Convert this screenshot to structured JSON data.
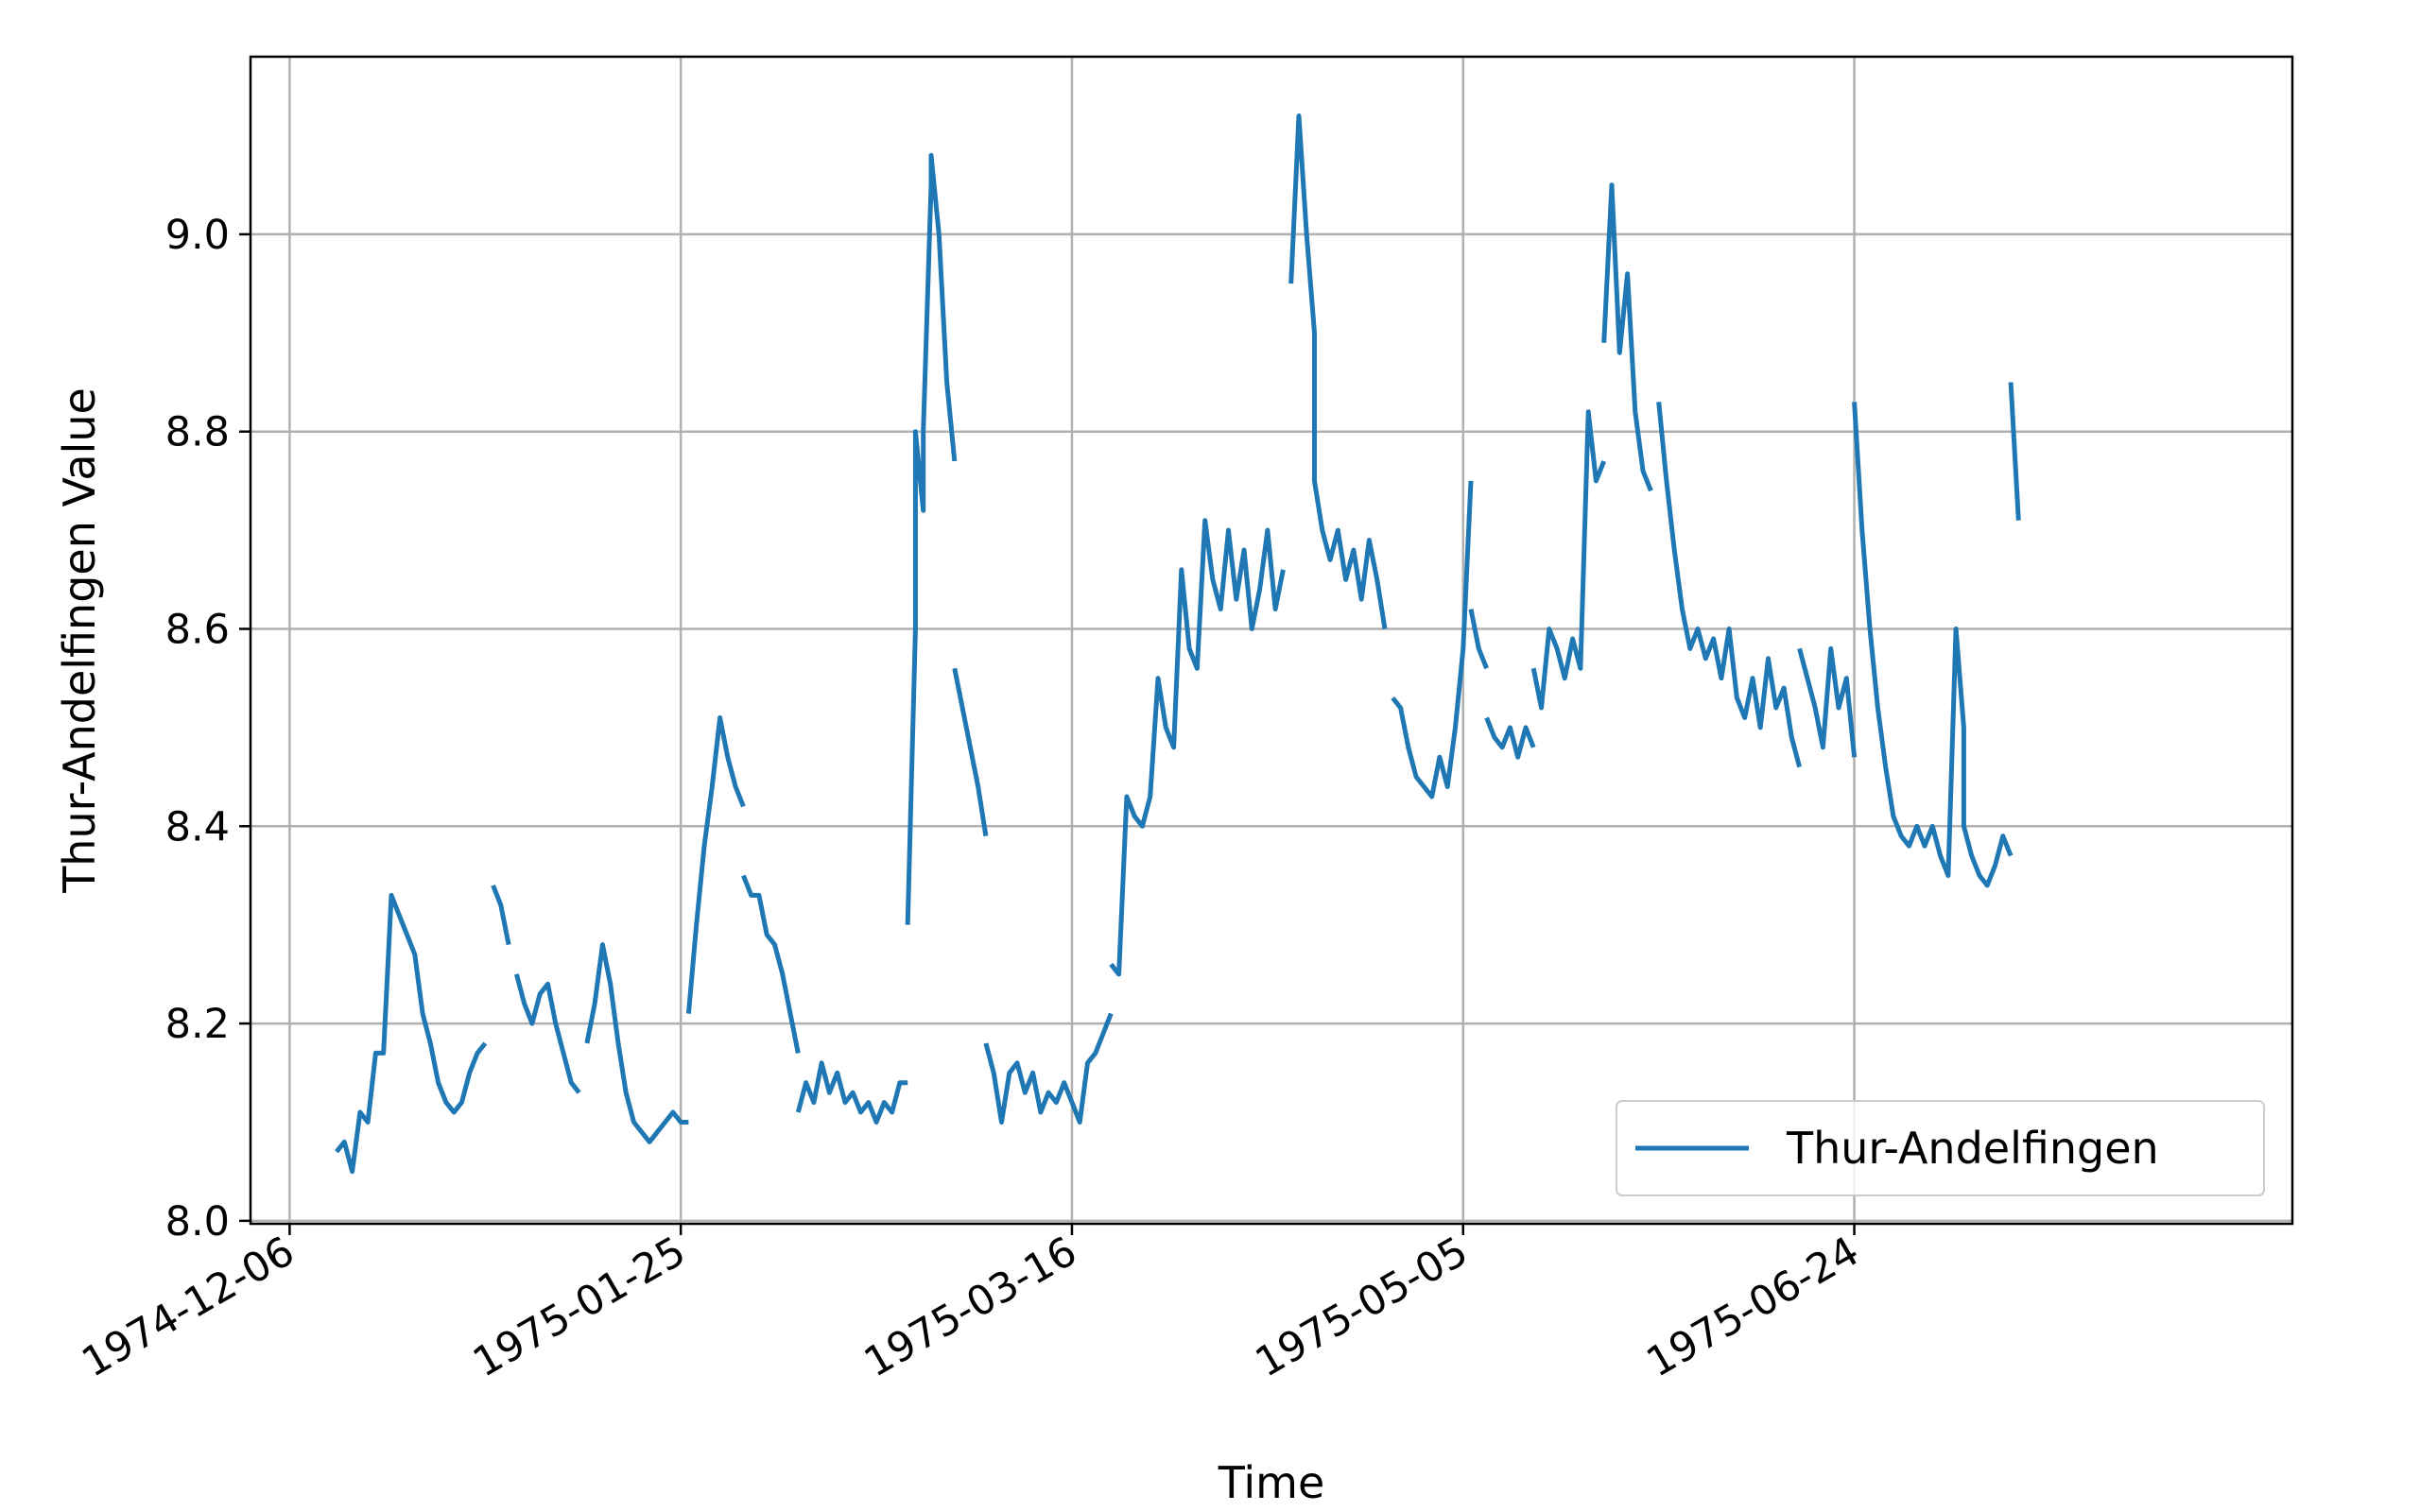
{
  "colors": {
    "series": "#1f77b4",
    "grid": "#b0b0b0",
    "axes": "#000000",
    "legend_border": "#cccccc"
  },
  "chart_data": {
    "type": "line",
    "title": "",
    "xlabel": "Time",
    "ylabel": "Thur-Andelfingen Value",
    "x_tick_labels": [
      "1974-12-06",
      "1975-01-25",
      "1975-03-16",
      "1975-05-05",
      "1975-06-24"
    ],
    "y_tick_labels": [
      "8.0",
      "8.2",
      "8.4",
      "8.6",
      "8.8",
      "9.0"
    ],
    "xlim": [
      "1974-12-01",
      "1975-08-19"
    ],
    "ylim": [
      7.997,
      9.18
    ],
    "grid": true,
    "legend": "lower right",
    "series": [
      {
        "name": "Thur-Andelfingen",
        "color": "#1f77b4",
        "segments": [
          [
            [
              "1974-12-12",
              8.07
            ],
            [
              "1974-12-13",
              8.08
            ],
            [
              "1974-12-14",
              8.05
            ],
            [
              "1974-12-15",
              8.11
            ],
            [
              "1974-12-16",
              8.1
            ],
            [
              "1974-12-17",
              8.17
            ],
            [
              "1974-12-18",
              8.17
            ],
            [
              "1974-12-19",
              8.33
            ],
            [
              "1974-12-20",
              8.31
            ],
            [
              "1974-12-21",
              8.29
            ],
            [
              "1974-12-22",
              8.27
            ],
            [
              "1974-12-23",
              8.21
            ],
            [
              "1974-12-24",
              8.18
            ],
            [
              "1974-12-25",
              8.14
            ],
            [
              "1974-12-26",
              8.12
            ],
            [
              "1974-12-27",
              8.11
            ],
            [
              "1974-12-28",
              8.12
            ],
            [
              "1974-12-29",
              8.15
            ],
            [
              "1974-12-30",
              8.17
            ],
            [
              "1974-12-31",
              8.18
            ]
          ],
          [
            [
              "1975-01-01",
              8.34
            ],
            [
              "1975-01-02",
              8.32
            ],
            [
              "1975-01-03",
              8.28
            ]
          ],
          [
            [
              "1975-01-04",
              8.25
            ],
            [
              "1975-01-05",
              8.22
            ],
            [
              "1975-01-06",
              8.2
            ],
            [
              "1975-01-07",
              8.23
            ],
            [
              "1975-01-08",
              8.24
            ],
            [
              "1975-01-09",
              8.2
            ],
            [
              "1975-01-10",
              8.17
            ],
            [
              "1975-01-11",
              8.14
            ],
            [
              "1975-01-12",
              8.13
            ]
          ],
          [
            [
              "1975-01-13",
              8.18
            ],
            [
              "1975-01-14",
              8.22
            ],
            [
              "1975-01-15",
              8.28
            ],
            [
              "1975-01-16",
              8.24
            ],
            [
              "1975-01-17",
              8.18
            ],
            [
              "1975-01-18",
              8.13
            ],
            [
              "1975-01-19",
              8.1
            ],
            [
              "1975-01-20",
              8.09
            ],
            [
              "1975-01-21",
              8.08
            ],
            [
              "1975-01-22",
              8.09
            ],
            [
              "1975-01-23",
              8.1
            ],
            [
              "1975-01-24",
              8.11
            ],
            [
              "1975-01-25",
              8.1
            ],
            [
              "1975-01-26",
              8.1
            ]
          ],
          [
            [
              "1975-01-26",
              8.21
            ],
            [
              "1975-01-27",
              8.3
            ],
            [
              "1975-01-28",
              8.38
            ],
            [
              "1975-01-29",
              8.44
            ],
            [
              "1975-01-30",
              8.51
            ],
            [
              "1975-01-31",
              8.47
            ],
            [
              "1975-02-01",
              8.44
            ],
            [
              "1975-02-02",
              8.42
            ]
          ],
          [
            [
              "1975-02-02",
              8.35
            ],
            [
              "1975-02-03",
              8.33
            ],
            [
              "1975-02-04",
              8.33
            ],
            [
              "1975-02-05",
              8.29
            ],
            [
              "1975-02-06",
              8.28
            ],
            [
              "1975-02-07",
              8.25
            ],
            [
              "1975-02-08",
              8.21
            ],
            [
              "1975-02-09",
              8.17
            ]
          ],
          [
            [
              "1975-02-09",
              8.11
            ],
            [
              "1975-02-10",
              8.14
            ],
            [
              "1975-02-11",
              8.12
            ],
            [
              "1975-02-12",
              8.16
            ],
            [
              "1975-02-13",
              8.13
            ],
            [
              "1975-02-14",
              8.15
            ],
            [
              "1975-02-15",
              8.12
            ],
            [
              "1975-02-16",
              8.13
            ],
            [
              "1975-02-17",
              8.11
            ],
            [
              "1975-02-18",
              8.12
            ],
            [
              "1975-02-19",
              8.1
            ],
            [
              "1975-02-20",
              8.12
            ],
            [
              "1975-02-21",
              8.11
            ],
            [
              "1975-02-22",
              8.14
            ],
            [
              "1975-02-23",
              8.14
            ]
          ],
          [
            [
              "1975-02-23",
              8.3
            ],
            [
              "1975-02-24",
              8.6
            ],
            [
              "1975-02-24",
              8.8
            ],
            [
              "1975-02-25",
              8.72
            ],
            [
              "1975-02-25",
              8.8
            ],
            [
              "1975-02-26",
              9.05
            ],
            [
              "1975-02-26",
              9.08
            ],
            [
              "1975-02-27",
              9.0
            ],
            [
              "1975-02-28",
              8.85
            ],
            [
              "1975-03-01",
              8.77
            ]
          ],
          [
            [
              "1975-03-01",
              8.56
            ],
            [
              "1975-03-02",
              8.52
            ],
            [
              "1975-03-03",
              8.48
            ],
            [
              "1975-03-04",
              8.44
            ],
            [
              "1975-03-05",
              8.39
            ]
          ],
          [
            [
              "1975-03-05",
              8.18
            ],
            [
              "1975-03-06",
              8.15
            ],
            [
              "1975-03-07",
              8.1
            ],
            [
              "1975-03-08",
              8.15
            ],
            [
              "1975-03-09",
              8.16
            ],
            [
              "1975-03-10",
              8.13
            ],
            [
              "1975-03-11",
              8.15
            ],
            [
              "1975-03-12",
              8.11
            ],
            [
              "1975-03-13",
              8.13
            ],
            [
              "1975-03-14",
              8.12
            ],
            [
              "1975-03-15",
              8.14
            ],
            [
              "1975-03-16",
              8.12
            ],
            [
              "1975-03-17",
              8.1
            ],
            [
              "1975-03-18",
              8.16
            ],
            [
              "1975-03-19",
              8.17
            ],
            [
              "1975-03-20",
              8.19
            ],
            [
              "1975-03-21",
              8.21
            ]
          ],
          [
            [
              "1975-03-21",
              8.26
            ],
            [
              "1975-03-22",
              8.25
            ],
            [
              "1975-03-23",
              8.43
            ],
            [
              "1975-03-24",
              8.41
            ],
            [
              "1975-03-25",
              8.4
            ],
            [
              "1975-03-26",
              8.43
            ],
            [
              "1975-03-27",
              8.55
            ],
            [
              "1975-03-28",
              8.5
            ],
            [
              "1975-03-29",
              8.48
            ],
            [
              "1975-03-30",
              8.66
            ],
            [
              "1975-03-31",
              8.58
            ],
            [
              "1975-04-01",
              8.56
            ],
            [
              "1975-04-02",
              8.71
            ],
            [
              "1975-04-03",
              8.65
            ],
            [
              "1975-04-04",
              8.62
            ],
            [
              "1975-04-05",
              8.7
            ],
            [
              "1975-04-06",
              8.63
            ],
            [
              "1975-04-07",
              8.68
            ],
            [
              "1975-04-08",
              8.6
            ],
            [
              "1975-04-09",
              8.64
            ],
            [
              "1975-04-10",
              8.7
            ],
            [
              "1975-04-11",
              8.62
            ],
            [
              "1975-04-12",
              8.66
            ]
          ],
          [
            [
              "1975-04-13",
              8.95
            ],
            [
              "1975-04-14",
              9.12
            ],
            [
              "1975-04-15",
              9.0
            ],
            [
              "1975-04-16",
              8.9
            ],
            [
              "1975-04-16",
              8.75
            ],
            [
              "1975-04-17",
              8.7
            ],
            [
              "1975-04-18",
              8.67
            ],
            [
              "1975-04-19",
              8.7
            ],
            [
              "1975-04-20",
              8.65
            ],
            [
              "1975-04-21",
              8.68
            ],
            [
              "1975-04-22",
              8.63
            ],
            [
              "1975-04-23",
              8.69
            ],
            [
              "1975-04-24",
              8.65
            ],
            [
              "1975-04-25",
              8.6
            ]
          ],
          [
            [
              "1975-04-26",
              8.53
            ],
            [
              "1975-04-27",
              8.52
            ],
            [
              "1975-04-28",
              8.48
            ],
            [
              "1975-04-29",
              8.45
            ],
            [
              "1975-04-30",
              8.44
            ],
            [
              "1975-05-01",
              8.43
            ],
            [
              "1975-05-02",
              8.47
            ],
            [
              "1975-05-03",
              8.44
            ],
            [
              "1975-05-04",
              8.5
            ],
            [
              "1975-05-05",
              8.58
            ],
            [
              "1975-05-06",
              8.75
            ]
          ],
          [
            [
              "1975-05-06",
              8.62
            ],
            [
              "1975-05-07",
              8.58
            ],
            [
              "1975-05-08",
              8.56
            ]
          ],
          [
            [
              "1975-05-08",
              8.51
            ],
            [
              "1975-05-09",
              8.49
            ],
            [
              "1975-05-10",
              8.48
            ],
            [
              "1975-05-11",
              8.5
            ],
            [
              "1975-05-12",
              8.47
            ],
            [
              "1975-05-13",
              8.5
            ],
            [
              "1975-05-14",
              8.48
            ]
          ],
          [
            [
              "1975-05-14",
              8.56
            ],
            [
              "1975-05-15",
              8.52
            ],
            [
              "1975-05-16",
              8.6
            ],
            [
              "1975-05-17",
              8.58
            ],
            [
              "1975-05-18",
              8.55
            ],
            [
              "1975-05-19",
              8.59
            ],
            [
              "1975-05-20",
              8.56
            ],
            [
              "1975-05-21",
              8.82
            ],
            [
              "1975-05-22",
              8.75
            ],
            [
              "1975-05-23",
              8.77
            ]
          ],
          [
            [
              "1975-05-23",
              8.89
            ],
            [
              "1975-05-24",
              9.05
            ],
            [
              "1975-05-25",
              8.88
            ],
            [
              "1975-05-26",
              8.96
            ],
            [
              "1975-05-27",
              8.82
            ],
            [
              "1975-05-28",
              8.76
            ],
            [
              "1975-05-29",
              8.74
            ]
          ],
          [
            [
              "1975-05-30",
              8.83
            ],
            [
              "1975-05-31",
              8.75
            ],
            [
              "1975-06-01",
              8.68
            ],
            [
              "1975-06-02",
              8.62
            ],
            [
              "1975-06-03",
              8.58
            ],
            [
              "1975-06-04",
              8.6
            ],
            [
              "1975-06-05",
              8.57
            ],
            [
              "1975-06-06",
              8.59
            ],
            [
              "1975-06-07",
              8.55
            ],
            [
              "1975-06-08",
              8.6
            ],
            [
              "1975-06-09",
              8.53
            ],
            [
              "1975-06-10",
              8.51
            ],
            [
              "1975-06-11",
              8.55
            ],
            [
              "1975-06-12",
              8.5
            ],
            [
              "1975-06-13",
              8.57
            ],
            [
              "1975-06-14",
              8.52
            ],
            [
              "1975-06-15",
              8.54
            ],
            [
              "1975-06-16",
              8.49
            ],
            [
              "1975-06-17",
              8.46
            ]
          ],
          [
            [
              "1975-06-17",
              8.58
            ],
            [
              "1975-06-18",
              8.55
            ],
            [
              "1975-06-19",
              8.52
            ],
            [
              "1975-06-20",
              8.48
            ],
            [
              "1975-06-21",
              8.58
            ],
            [
              "1975-06-22",
              8.52
            ],
            [
              "1975-06-23",
              8.55
            ],
            [
              "1975-06-24",
              8.47
            ]
          ],
          [
            [
              "1975-06-24",
              8.83
            ],
            [
              "1975-06-25",
              8.7
            ],
            [
              "1975-06-26",
              8.6
            ],
            [
              "1975-06-27",
              8.52
            ],
            [
              "1975-06-28",
              8.46
            ],
            [
              "1975-06-29",
              8.41
            ],
            [
              "1975-06-30",
              8.39
            ],
            [
              "1975-07-01",
              8.38
            ],
            [
              "1975-07-02",
              8.4
            ],
            [
              "1975-07-03",
              8.38
            ],
            [
              "1975-07-04",
              8.4
            ],
            [
              "1975-07-05",
              8.37
            ],
            [
              "1975-07-06",
              8.35
            ],
            [
              "1975-07-07",
              8.6
            ],
            [
              "1975-07-08",
              8.5
            ],
            [
              "1975-07-08",
              8.4
            ],
            [
              "1975-07-09",
              8.37
            ],
            [
              "1975-07-10",
              8.35
            ],
            [
              "1975-07-11",
              8.34
            ],
            [
              "1975-07-12",
              8.36
            ],
            [
              "1975-07-13",
              8.39
            ],
            [
              "1975-07-14",
              8.37
            ]
          ],
          [
            [
              "1975-07-14",
              8.85
            ],
            [
              "1975-07-15",
              8.71
            ]
          ]
        ]
      }
    ]
  }
}
